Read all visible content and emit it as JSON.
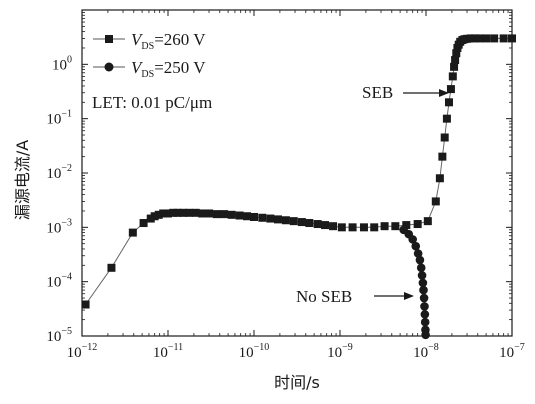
{
  "chart_data": {
    "type": "scatter",
    "xscale": "log",
    "yscale": "log",
    "xlim": [
      1e-12,
      1e-07
    ],
    "ylim": [
      1e-05,
      10
    ],
    "xlabel": "时间/s",
    "ylabel": "漏源电流/A",
    "xticks": [
      {
        "base": "10",
        "exp": "−12",
        "value": 1e-12
      },
      {
        "base": "10",
        "exp": "−11",
        "value": 1e-11
      },
      {
        "base": "10",
        "exp": "−10",
        "value": 1e-10
      },
      {
        "base": "10",
        "exp": "−9",
        "value": 1e-09
      },
      {
        "base": "10",
        "exp": "−8",
        "value": 1e-08
      },
      {
        "base": "10",
        "exp": "−7",
        "value": 1e-07
      }
    ],
    "yticks": [
      {
        "base": "10",
        "exp": "−5",
        "value": 1e-05
      },
      {
        "base": "10",
        "exp": "−4",
        "value": 0.0001
      },
      {
        "base": "10",
        "exp": "−3",
        "value": 0.001
      },
      {
        "base": "10",
        "exp": "−2",
        "value": 0.01
      },
      {
        "base": "10",
        "exp": "−1",
        "value": 0.1
      },
      {
        "base": "10",
        "exp": "0",
        "value": 1
      }
    ],
    "legend": {
      "placement": "top-left",
      "entries": [
        {
          "prefix": "V",
          "sub": "DS",
          "suffix": "=260 V",
          "marker": "square"
        },
        {
          "prefix": "V",
          "sub": "DS",
          "suffix": "=250 V",
          "marker": "circle"
        }
      ]
    },
    "annotations": [
      {
        "text": "LET: 0.01 pC/μm"
      },
      {
        "text": "SEB"
      },
      {
        "text": "No SEB"
      }
    ],
    "series": [
      {
        "name": "VDS=260 V",
        "marker": "square",
        "points": [
          [
            1.1e-12,
            3.8e-05
          ],
          [
            2.2e-12,
            0.00018
          ],
          [
            3.9e-12,
            0.0008
          ],
          [
            5.2e-12,
            0.0012
          ],
          [
            6.3e-12,
            0.00145
          ],
          [
            7e-12,
            0.0016
          ],
          [
            7.8e-12,
            0.0017
          ],
          [
            8.8e-12,
            0.0018
          ],
          [
            1e-11,
            0.0018
          ],
          [
            1.15e-11,
            0.00185
          ],
          [
            1.3e-11,
            0.00185
          ],
          [
            1.5e-11,
            0.00185
          ],
          [
            1.75e-11,
            0.00185
          ],
          [
            2.1e-11,
            0.00185
          ],
          [
            2.5e-11,
            0.0018
          ],
          [
            3e-11,
            0.0018
          ],
          [
            3.7e-11,
            0.00175
          ],
          [
            4.5e-11,
            0.00175
          ],
          [
            5.5e-11,
            0.0017
          ],
          [
            6.8e-11,
            0.00165
          ],
          [
            8.3e-11,
            0.0016
          ],
          [
            1e-10,
            0.00155
          ],
          [
            1.25e-10,
            0.0015
          ],
          [
            1.55e-10,
            0.00145
          ],
          [
            1.9e-10,
            0.0014
          ],
          [
            2.35e-10,
            0.00135
          ],
          [
            2.9e-10,
            0.0013
          ],
          [
            3.6e-10,
            0.00125
          ],
          [
            4.4e-10,
            0.0012
          ],
          [
            5.5e-10,
            0.00115
          ],
          [
            6.7e-10,
            0.0011
          ],
          [
            8.3e-10,
            0.00105
          ],
          [
            1.05e-09,
            0.001
          ],
          [
            1.4e-09,
            0.001
          ],
          [
            1.9e-09,
            0.001
          ],
          [
            2.5e-09,
            0.001
          ],
          [
            3.3e-09,
            0.00105
          ],
          [
            4.4e-09,
            0.00105
          ],
          [
            5.9e-09,
            0.0011
          ],
          [
            8e-09,
            0.00115
          ],
          [
            1.05e-08,
            0.0013
          ],
          [
            1.3e-08,
            0.003
          ],
          [
            1.45e-08,
            0.008
          ],
          [
            1.55e-08,
            0.02
          ],
          [
            1.65e-08,
            0.045
          ],
          [
            1.75e-08,
            0.1
          ],
          [
            1.85e-08,
            0.2
          ],
          [
            1.95e-08,
            0.35
          ],
          [
            2.05e-08,
            0.6
          ],
          [
            2.12e-08,
            0.9
          ],
          [
            2.18e-08,
            1.2
          ],
          [
            2.25e-08,
            1.6
          ],
          [
            2.32e-08,
            2.0
          ],
          [
            2.4e-08,
            2.3
          ],
          [
            2.5e-08,
            2.6
          ],
          [
            2.65e-08,
            2.8
          ],
          [
            2.8e-08,
            2.9
          ],
          [
            3e-08,
            2.95
          ],
          [
            3.3e-08,
            3.0
          ],
          [
            3.7e-08,
            3.0
          ],
          [
            4.2e-08,
            3.0
          ],
          [
            5e-08,
            3.0
          ],
          [
            6.2e-08,
            3.0
          ],
          [
            8e-08,
            3.0
          ],
          [
            1e-07,
            3.0
          ]
        ]
      },
      {
        "name": "VDS=250 V",
        "marker": "circle",
        "points": [
          [
            5.5e-09,
            0.0009
          ],
          [
            6.3e-09,
            0.00075
          ],
          [
            7e-09,
            0.0006
          ],
          [
            7.6e-09,
            0.00045
          ],
          [
            8.1e-09,
            0.00033
          ],
          [
            8.5e-09,
            0.00025
          ],
          [
            8.8e-09,
            0.00018
          ],
          [
            9e-09,
            0.00013
          ],
          [
            9.2e-09,
            9.5e-05
          ],
          [
            9.35e-09,
            7e-05
          ],
          [
            9.5e-09,
            5e-05
          ],
          [
            9.6e-09,
            3.5e-05
          ],
          [
            9.7e-09,
            2.5e-05
          ],
          [
            9.78e-09,
            1.8e-05
          ],
          [
            9.85e-09,
            1.3e-05
          ],
          [
            9.9e-09,
            1.05e-05
          ]
        ]
      }
    ]
  }
}
